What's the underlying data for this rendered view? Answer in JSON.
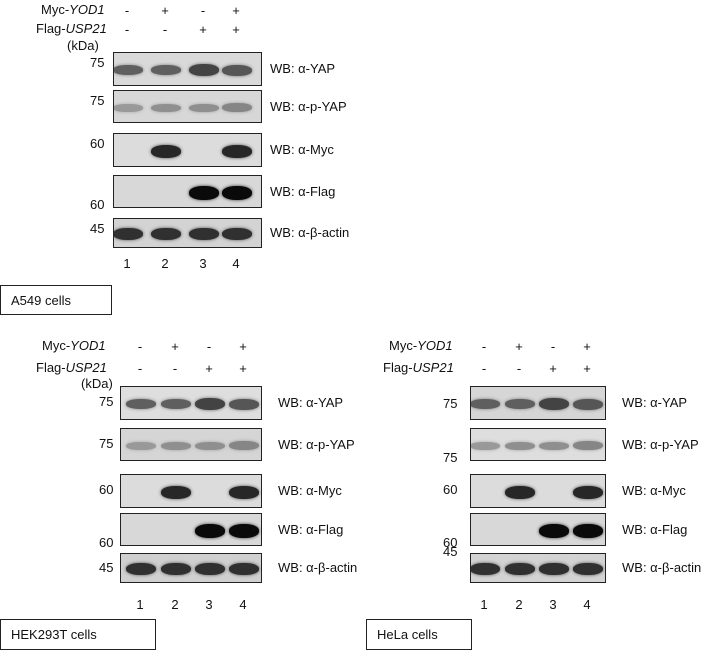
{
  "rows": {
    "myc_prefix": "Myc-",
    "myc_gene": "YOD1",
    "flag_prefix": "Flag-",
    "flag_gene": "USP21",
    "myc_signs": [
      "-",
      "+",
      "-",
      "+"
    ],
    "flag_signs": [
      "-",
      "-",
      "+",
      "+"
    ]
  },
  "kda_label": "(kDa)",
  "lanes": [
    "1",
    "2",
    "3",
    "4"
  ],
  "blots": [
    {
      "label": "WB: α-YAP",
      "mw": "75",
      "intensity": [
        0.55,
        0.55,
        0.7,
        0.6
      ]
    },
    {
      "label": "WB: α-p-YAP",
      "mw": "75",
      "intensity": [
        0.25,
        0.3,
        0.3,
        0.35
      ]
    },
    {
      "label": "WB: α-Myc",
      "mw": "60",
      "intensity": [
        0,
        0.85,
        0,
        0.85
      ]
    },
    {
      "label": "WB: α-Flag",
      "mw": "60",
      "intensity": [
        0,
        0,
        1,
        1
      ]
    },
    {
      "label": "WB: α-β-actin",
      "mw": "45",
      "intensity": [
        0.8,
        0.8,
        0.8,
        0.8
      ]
    }
  ],
  "cells": {
    "a549": "A549 cells",
    "hek": "HEK293T cells",
    "hela": "HeLa cells"
  },
  "hek_mw": [
    "75",
    "75",
    "60",
    "60",
    "45"
  ],
  "hela_mw": [
    "75",
    "75",
    "60",
    "60",
    "45"
  ]
}
